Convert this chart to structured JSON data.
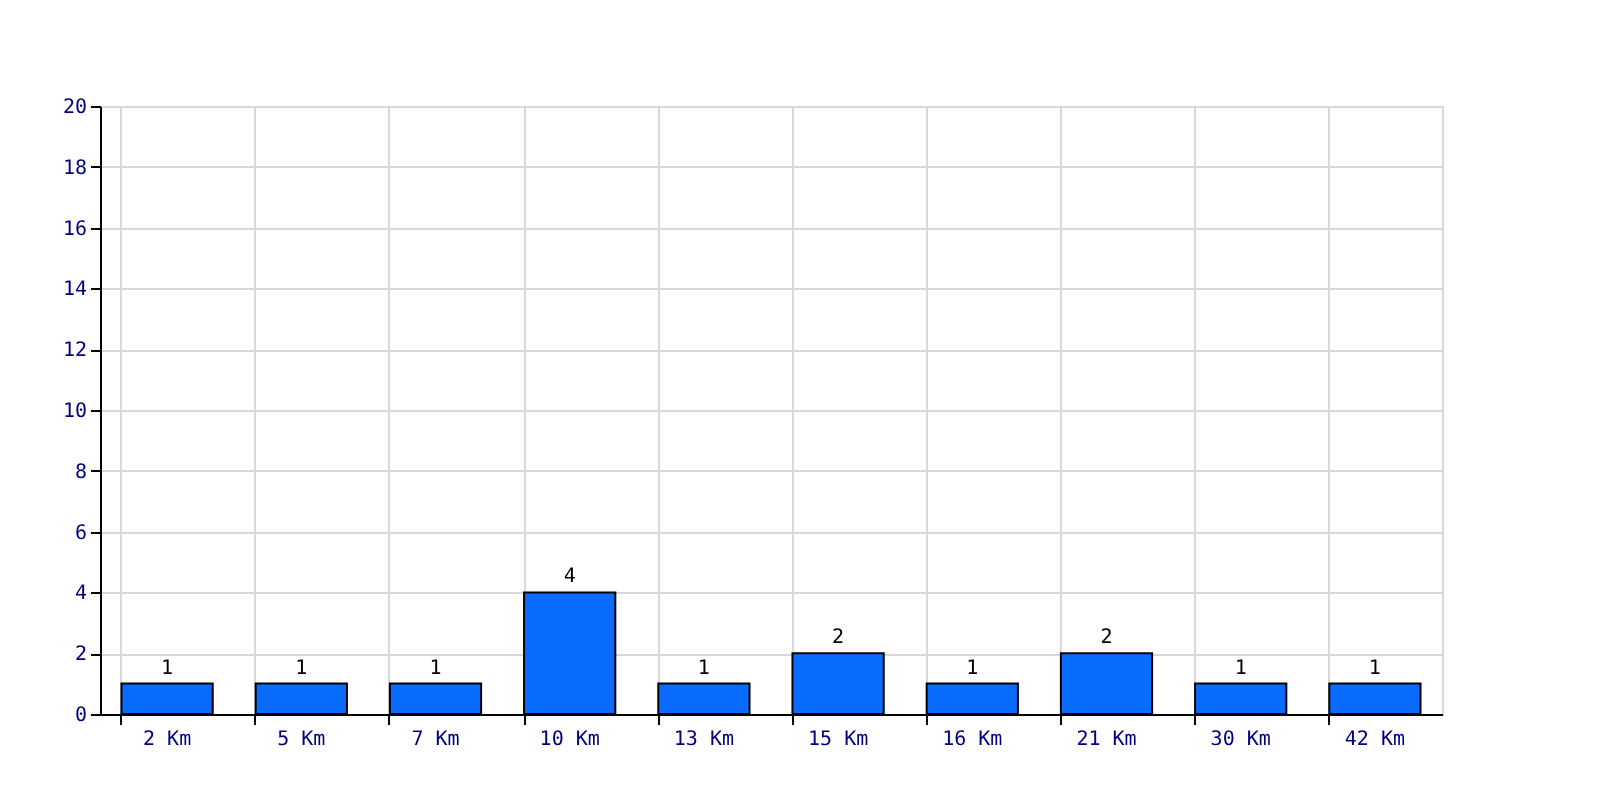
{
  "chart_data": {
    "type": "bar",
    "categories": [
      "2 Km",
      "5 Km",
      "7 Km",
      "10 Km",
      "13 Km",
      "15 Km",
      "16 Km",
      "21 Km",
      "30 Km",
      "42 Km"
    ],
    "values": [
      1,
      1,
      1,
      4,
      1,
      2,
      1,
      2,
      1,
      1
    ],
    "color": "#0a6cff",
    "ylim": [
      0,
      20
    ],
    "yticks": [
      0,
      2,
      4,
      6,
      8,
      10,
      12,
      14,
      16,
      18,
      20
    ],
    "grid": true,
    "data_labels": true
  }
}
